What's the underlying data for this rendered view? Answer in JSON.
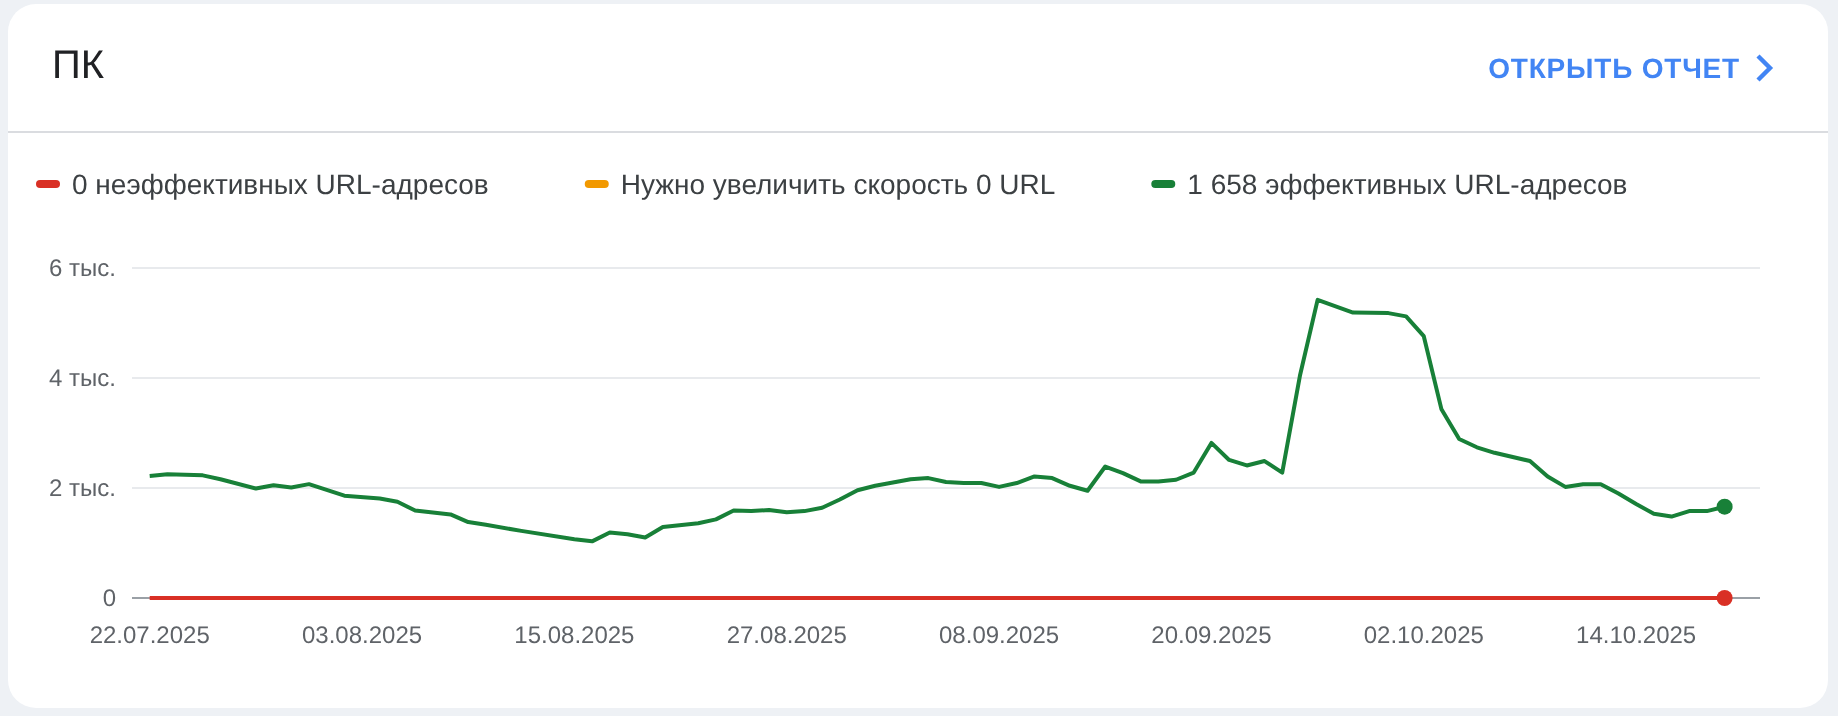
{
  "chart_data": {
    "type": "line",
    "title": "ПК",
    "annotations": [
      "ОТКРЫТЬ ОТЧЕТ"
    ],
    "series": [
      {
        "name": "0 неэффективных URL-адресов",
        "color": "#d93025",
        "x": [
          "2025-07-22",
          "2025-10-19"
        ],
        "values": [
          0,
          0
        ]
      },
      {
        "name": "Нужно увеличить скорость 0 URL",
        "color": "#f29900"
      },
      {
        "name": "1 658 эффективных URL-адресов",
        "color": "#188038",
        "x": [
          "2025-07-22",
          "2025-07-23",
          "2025-07-25",
          "2025-07-26",
          "2025-07-28",
          "2025-07-29",
          "2025-07-30",
          "2025-07-31",
          "2025-08-02",
          "2025-08-04",
          "2025-08-05",
          "2025-08-06",
          "2025-08-08",
          "2025-08-09",
          "2025-08-10",
          "2025-08-12",
          "2025-08-15",
          "2025-08-16",
          "2025-08-17",
          "2025-08-18",
          "2025-08-19",
          "2025-08-20",
          "2025-08-22",
          "2025-08-23",
          "2025-08-24",
          "2025-08-25",
          "2025-08-26",
          "2025-08-27",
          "2025-08-28",
          "2025-08-29",
          "2025-08-30",
          "2025-08-31",
          "2025-09-01",
          "2025-09-03",
          "2025-09-04",
          "2025-09-05",
          "2025-09-06",
          "2025-09-07",
          "2025-09-08",
          "2025-09-09",
          "2025-09-10",
          "2025-09-11",
          "2025-09-12",
          "2025-09-13",
          "2025-09-14",
          "2025-09-15",
          "2025-09-16",
          "2025-09-17",
          "2025-09-18",
          "2025-09-19",
          "2025-09-20",
          "2025-09-21",
          "2025-09-22",
          "2025-09-23",
          "2025-09-24",
          "2025-09-25",
          "2025-09-26",
          "2025-09-28",
          "2025-09-30",
          "2025-10-01",
          "2025-10-02",
          "2025-10-03",
          "2025-10-04",
          "2025-10-05",
          "2025-10-06",
          "2025-10-08",
          "2025-10-09",
          "2025-10-10",
          "2025-10-11",
          "2025-10-12",
          "2025-10-13",
          "2025-10-14",
          "2025-10-15",
          "2025-10-16",
          "2025-10-17",
          "2025-10-18",
          "2025-10-19"
        ],
        "values": [
          2.22,
          2.25,
          2.23,
          2.16,
          1.99,
          2.05,
          2.01,
          2.07,
          1.86,
          1.81,
          1.75,
          1.59,
          1.52,
          1.38,
          1.33,
          1.22,
          1.07,
          1.03,
          1.19,
          1.16,
          1.1,
          1.29,
          1.36,
          1.43,
          1.59,
          1.58,
          1.6,
          1.56,
          1.58,
          1.64,
          1.79,
          1.96,
          2.04,
          2.16,
          2.18,
          2.11,
          2.09,
          2.09,
          2.02,
          2.09,
          2.21,
          2.18,
          2.04,
          1.95,
          2.39,
          2.27,
          2.12,
          2.12,
          2.15,
          2.28,
          2.82,
          2.51,
          2.41,
          2.49,
          2.28,
          4.04,
          5.42,
          5.19,
          5.18,
          5.12,
          4.76,
          3.43,
          2.89,
          2.74,
          2.64,
          2.49,
          2.21,
          2.02,
          2.07,
          2.07,
          1.9,
          1.71,
          1.53,
          1.48,
          1.58,
          1.58,
          1.66
        ]
      }
    ],
    "xlim": [
      "2025-07-21",
      "2025-10-21"
    ],
    "xticks": [
      {
        "value": "2025-07-22",
        "label": "22.07.2025"
      },
      {
        "value": "2025-08-03",
        "label": "03.08.2025"
      },
      {
        "value": "2025-08-15",
        "label": "15.08.2025"
      },
      {
        "value": "2025-08-27",
        "label": "27.08.2025"
      },
      {
        "value": "2025-09-08",
        "label": "08.09.2025"
      },
      {
        "value": "2025-09-20",
        "label": "20.09.2025"
      },
      {
        "value": "2025-10-02",
        "label": "02.10.2025"
      },
      {
        "value": "2025-10-14",
        "label": "14.10.2025"
      }
    ],
    "ylim": [
      0,
      6
    ],
    "yticks": [
      0,
      {
        "value": 2,
        "label": "2 тыс."
      },
      {
        "value": 4,
        "label": "4 тыс."
      },
      {
        "value": 6,
        "label": "6 тыс."
      }
    ],
    "grid": "y",
    "legend": "top left",
    "line_style": "solid"
  }
}
